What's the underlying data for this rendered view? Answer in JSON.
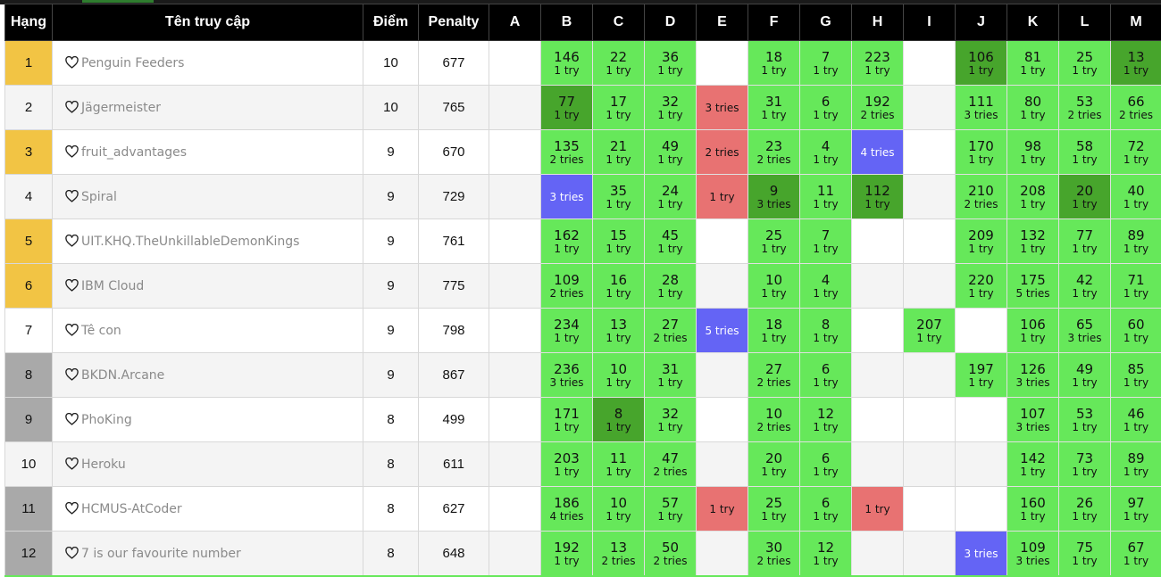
{
  "colors": {
    "header_bg": "#000000",
    "gold": "#f2c444",
    "silver": "#a9a9a9",
    "solved": "#66e85a",
    "first_solve": "#47a52c",
    "failed": "#e87272",
    "pending": "#6464f5"
  },
  "icons": {
    "favorite": "heart-outline-icon"
  },
  "table": {
    "headers": {
      "rank": "Hạng",
      "team": "Tên truy cập",
      "score": "Điểm",
      "penalty": "Penalty"
    },
    "problems": [
      "A",
      "B",
      "C",
      "D",
      "E",
      "F",
      "G",
      "H",
      "I",
      "J",
      "K",
      "L",
      "M"
    ],
    "rows": [
      {
        "rank": "1",
        "medal": "gold",
        "team": "Penguin Feeders",
        "score": "10",
        "penalty": "677",
        "cells": [
          {
            "s": "none"
          },
          {
            "s": "solved",
            "t": "146",
            "r": "1 try"
          },
          {
            "s": "solved",
            "t": "22",
            "r": "1 try"
          },
          {
            "s": "solved",
            "t": "36",
            "r": "1 try"
          },
          {
            "s": "none"
          },
          {
            "s": "solved",
            "t": "18",
            "r": "1 try"
          },
          {
            "s": "solved",
            "t": "7",
            "r": "1 try"
          },
          {
            "s": "solved",
            "t": "223",
            "r": "1 try"
          },
          {
            "s": "none"
          },
          {
            "s": "first",
            "t": "106",
            "r": "1 try"
          },
          {
            "s": "solved",
            "t": "81",
            "r": "1 try"
          },
          {
            "s": "solved",
            "t": "25",
            "r": "1 try"
          },
          {
            "s": "first",
            "t": "13",
            "r": "1 try"
          }
        ]
      },
      {
        "rank": "2",
        "medal": "none",
        "team": "Jägermeister",
        "score": "10",
        "penalty": "765",
        "cells": [
          {
            "s": "none"
          },
          {
            "s": "first",
            "t": "77",
            "r": "1 try"
          },
          {
            "s": "solved",
            "t": "17",
            "r": "1 try"
          },
          {
            "s": "solved",
            "t": "32",
            "r": "1 try"
          },
          {
            "s": "failed",
            "r": "3 tries"
          },
          {
            "s": "solved",
            "t": "31",
            "r": "1 try"
          },
          {
            "s": "solved",
            "t": "6",
            "r": "1 try"
          },
          {
            "s": "solved",
            "t": "192",
            "r": "2 tries"
          },
          {
            "s": "none"
          },
          {
            "s": "solved",
            "t": "111",
            "r": "3 tries"
          },
          {
            "s": "solved",
            "t": "80",
            "r": "1 try"
          },
          {
            "s": "solved",
            "t": "53",
            "r": "2 tries"
          },
          {
            "s": "solved",
            "t": "66",
            "r": "2 tries"
          }
        ]
      },
      {
        "rank": "3",
        "medal": "gold",
        "team": "fruit_advantages",
        "score": "9",
        "penalty": "670",
        "cells": [
          {
            "s": "none"
          },
          {
            "s": "solved",
            "t": "135",
            "r": "2 tries"
          },
          {
            "s": "solved",
            "t": "21",
            "r": "1 try"
          },
          {
            "s": "solved",
            "t": "49",
            "r": "1 try"
          },
          {
            "s": "failed",
            "r": "2 tries"
          },
          {
            "s": "solved",
            "t": "23",
            "r": "2 tries"
          },
          {
            "s": "solved",
            "t": "4",
            "r": "1 try"
          },
          {
            "s": "pending",
            "r": "4 tries"
          },
          {
            "s": "none"
          },
          {
            "s": "solved",
            "t": "170",
            "r": "1 try"
          },
          {
            "s": "solved",
            "t": "98",
            "r": "1 try"
          },
          {
            "s": "solved",
            "t": "58",
            "r": "1 try"
          },
          {
            "s": "solved",
            "t": "72",
            "r": "1 try"
          }
        ]
      },
      {
        "rank": "4",
        "medal": "none",
        "team": "Spiral",
        "score": "9",
        "penalty": "729",
        "cells": [
          {
            "s": "none"
          },
          {
            "s": "pending",
            "r": "3 tries"
          },
          {
            "s": "solved",
            "t": "35",
            "r": "1 try"
          },
          {
            "s": "solved",
            "t": "24",
            "r": "1 try"
          },
          {
            "s": "failed",
            "r": "1 try"
          },
          {
            "s": "first",
            "t": "9",
            "r": "3 tries"
          },
          {
            "s": "solved",
            "t": "11",
            "r": "1 try"
          },
          {
            "s": "first",
            "t": "112",
            "r": "1 try"
          },
          {
            "s": "none"
          },
          {
            "s": "solved",
            "t": "210",
            "r": "2 tries"
          },
          {
            "s": "solved",
            "t": "208",
            "r": "1 try"
          },
          {
            "s": "first",
            "t": "20",
            "r": "1 try"
          },
          {
            "s": "solved",
            "t": "40",
            "r": "1 try"
          }
        ]
      },
      {
        "rank": "5",
        "medal": "gold",
        "team": "UIT.KHQ.TheUnkillableDemonKings",
        "score": "9",
        "penalty": "761",
        "cells": [
          {
            "s": "none"
          },
          {
            "s": "solved",
            "t": "162",
            "r": "1 try"
          },
          {
            "s": "solved",
            "t": "15",
            "r": "1 try"
          },
          {
            "s": "solved",
            "t": "45",
            "r": "1 try"
          },
          {
            "s": "none"
          },
          {
            "s": "solved",
            "t": "25",
            "r": "1 try"
          },
          {
            "s": "solved",
            "t": "7",
            "r": "1 try"
          },
          {
            "s": "none"
          },
          {
            "s": "none"
          },
          {
            "s": "solved",
            "t": "209",
            "r": "1 try"
          },
          {
            "s": "solved",
            "t": "132",
            "r": "1 try"
          },
          {
            "s": "solved",
            "t": "77",
            "r": "1 try"
          },
          {
            "s": "solved",
            "t": "89",
            "r": "1 try"
          }
        ]
      },
      {
        "rank": "6",
        "medal": "gold",
        "team": "IBM Cloud",
        "score": "9",
        "penalty": "775",
        "cells": [
          {
            "s": "none"
          },
          {
            "s": "solved",
            "t": "109",
            "r": "2 tries"
          },
          {
            "s": "solved",
            "t": "16",
            "r": "1 try"
          },
          {
            "s": "solved",
            "t": "28",
            "r": "1 try"
          },
          {
            "s": "none"
          },
          {
            "s": "solved",
            "t": "10",
            "r": "1 try"
          },
          {
            "s": "solved",
            "t": "4",
            "r": "1 try"
          },
          {
            "s": "none"
          },
          {
            "s": "none"
          },
          {
            "s": "solved",
            "t": "220",
            "r": "1 try"
          },
          {
            "s": "solved",
            "t": "175",
            "r": "5 tries"
          },
          {
            "s": "solved",
            "t": "42",
            "r": "1 try"
          },
          {
            "s": "solved",
            "t": "71",
            "r": "1 try"
          }
        ]
      },
      {
        "rank": "7",
        "medal": "none",
        "team": "Tê con",
        "score": "9",
        "penalty": "798",
        "cells": [
          {
            "s": "none"
          },
          {
            "s": "solved",
            "t": "234",
            "r": "1 try"
          },
          {
            "s": "solved",
            "t": "13",
            "r": "1 try"
          },
          {
            "s": "solved",
            "t": "27",
            "r": "2 tries"
          },
          {
            "s": "pending",
            "r": "5 tries"
          },
          {
            "s": "solved",
            "t": "18",
            "r": "1 try"
          },
          {
            "s": "solved",
            "t": "8",
            "r": "1 try"
          },
          {
            "s": "none"
          },
          {
            "s": "solved",
            "t": "207",
            "r": "1 try"
          },
          {
            "s": "none"
          },
          {
            "s": "solved",
            "t": "106",
            "r": "1 try"
          },
          {
            "s": "solved",
            "t": "65",
            "r": "3 tries"
          },
          {
            "s": "solved",
            "t": "60",
            "r": "1 try"
          }
        ]
      },
      {
        "rank": "8",
        "medal": "silver",
        "team": "BKDN.Arcane",
        "score": "9",
        "penalty": "867",
        "cells": [
          {
            "s": "none"
          },
          {
            "s": "solved",
            "t": "236",
            "r": "3 tries"
          },
          {
            "s": "solved",
            "t": "10",
            "r": "1 try"
          },
          {
            "s": "solved",
            "t": "31",
            "r": "1 try"
          },
          {
            "s": "none"
          },
          {
            "s": "solved",
            "t": "27",
            "r": "2 tries"
          },
          {
            "s": "solved",
            "t": "6",
            "r": "1 try"
          },
          {
            "s": "none"
          },
          {
            "s": "none"
          },
          {
            "s": "solved",
            "t": "197",
            "r": "1 try"
          },
          {
            "s": "solved",
            "t": "126",
            "r": "3 tries"
          },
          {
            "s": "solved",
            "t": "49",
            "r": "1 try"
          },
          {
            "s": "solved",
            "t": "85",
            "r": "1 try"
          }
        ]
      },
      {
        "rank": "9",
        "medal": "silver",
        "team": "PhoKing",
        "score": "8",
        "penalty": "499",
        "cells": [
          {
            "s": "none"
          },
          {
            "s": "solved",
            "t": "171",
            "r": "1 try"
          },
          {
            "s": "first",
            "t": "8",
            "r": "1 try"
          },
          {
            "s": "solved",
            "t": "32",
            "r": "1 try"
          },
          {
            "s": "none"
          },
          {
            "s": "solved",
            "t": "10",
            "r": "2 tries"
          },
          {
            "s": "solved",
            "t": "12",
            "r": "1 try"
          },
          {
            "s": "none"
          },
          {
            "s": "none"
          },
          {
            "s": "none"
          },
          {
            "s": "solved",
            "t": "107",
            "r": "3 tries"
          },
          {
            "s": "solved",
            "t": "53",
            "r": "1 try"
          },
          {
            "s": "solved",
            "t": "46",
            "r": "1 try"
          }
        ]
      },
      {
        "rank": "10",
        "medal": "none",
        "team": "Heroku",
        "score": "8",
        "penalty": "611",
        "cells": [
          {
            "s": "none"
          },
          {
            "s": "solved",
            "t": "203",
            "r": "1 try"
          },
          {
            "s": "solved",
            "t": "11",
            "r": "1 try"
          },
          {
            "s": "solved",
            "t": "47",
            "r": "2 tries"
          },
          {
            "s": "none"
          },
          {
            "s": "solved",
            "t": "20",
            "r": "1 try"
          },
          {
            "s": "solved",
            "t": "6",
            "r": "1 try"
          },
          {
            "s": "none"
          },
          {
            "s": "none"
          },
          {
            "s": "none"
          },
          {
            "s": "solved",
            "t": "142",
            "r": "1 try"
          },
          {
            "s": "solved",
            "t": "73",
            "r": "1 try"
          },
          {
            "s": "solved",
            "t": "89",
            "r": "1 try"
          }
        ]
      },
      {
        "rank": "11",
        "medal": "silver",
        "team": "HCMUS-AtCoder",
        "score": "8",
        "penalty": "627",
        "cells": [
          {
            "s": "none"
          },
          {
            "s": "solved",
            "t": "186",
            "r": "4 tries"
          },
          {
            "s": "solved",
            "t": "10",
            "r": "1 try"
          },
          {
            "s": "solved",
            "t": "57",
            "r": "1 try"
          },
          {
            "s": "failed",
            "r": "1 try"
          },
          {
            "s": "solved",
            "t": "25",
            "r": "1 try"
          },
          {
            "s": "solved",
            "t": "6",
            "r": "1 try"
          },
          {
            "s": "failed",
            "r": "1 try"
          },
          {
            "s": "none"
          },
          {
            "s": "none"
          },
          {
            "s": "solved",
            "t": "160",
            "r": "1 try"
          },
          {
            "s": "solved",
            "t": "26",
            "r": "1 try"
          },
          {
            "s": "solved",
            "t": "97",
            "r": "1 try"
          }
        ]
      },
      {
        "rank": "12",
        "medal": "silver",
        "team": "7 is our favourite number",
        "score": "8",
        "penalty": "648",
        "cells": [
          {
            "s": "none"
          },
          {
            "s": "solved",
            "t": "192",
            "r": "1 try"
          },
          {
            "s": "solved",
            "t": "13",
            "r": "2 tries"
          },
          {
            "s": "solved",
            "t": "50",
            "r": "2 tries"
          },
          {
            "s": "none"
          },
          {
            "s": "solved",
            "t": "30",
            "r": "2 tries"
          },
          {
            "s": "solved",
            "t": "12",
            "r": "1 try"
          },
          {
            "s": "none"
          },
          {
            "s": "none"
          },
          {
            "s": "pending",
            "r": "3 tries"
          },
          {
            "s": "solved",
            "t": "109",
            "r": "3 tries"
          },
          {
            "s": "solved",
            "t": "75",
            "r": "1 try"
          },
          {
            "s": "solved",
            "t": "67",
            "r": "1 try"
          }
        ]
      }
    ]
  }
}
